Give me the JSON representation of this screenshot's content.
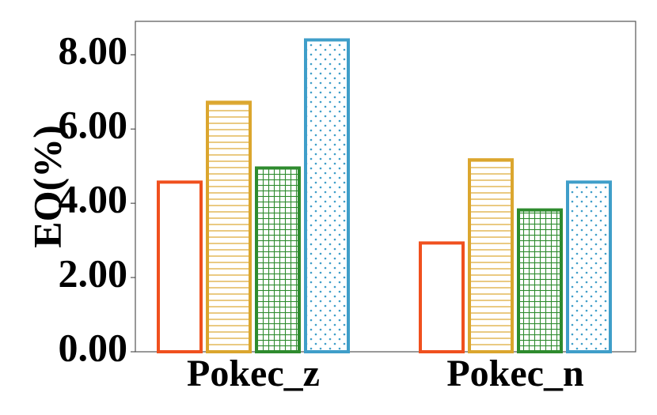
{
  "chart_data": {
    "type": "bar",
    "categories": [
      "Pokec_z",
      "Pokec_n"
    ],
    "series": [
      {
        "values": [
          4.57,
          2.93
        ],
        "color": "#f0501e",
        "pattern": "none"
      },
      {
        "values": [
          6.72,
          5.17
        ],
        "color": "#dba62e",
        "pattern": "horizontal-lines"
      },
      {
        "values": [
          4.95,
          3.82
        ],
        "color": "#2e8b2e",
        "pattern": "grid"
      },
      {
        "values": [
          8.4,
          4.57
        ],
        "color": "#3f9ec9",
        "pattern": "dots"
      }
    ],
    "xlabel": "",
    "ylabel": "EO(%)",
    "ylim": [
      0,
      8.9
    ],
    "yticks": [
      "0.00",
      "2.00",
      "4.00",
      "6.00",
      "8.00"
    ],
    "ytick_values": [
      0,
      2,
      4,
      6,
      8
    ],
    "grid": false,
    "legend": "none"
  }
}
